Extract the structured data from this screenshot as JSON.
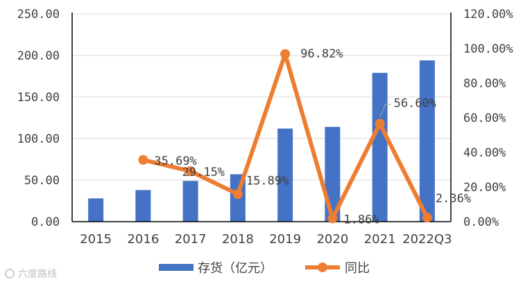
{
  "chart_data": {
    "type": "bar+line",
    "categories": [
      "2015",
      "2016",
      "2017",
      "2018",
      "2019",
      "2020",
      "2021",
      "2022Q3"
    ],
    "series": [
      {
        "name": "存货（亿元）",
        "type": "bar",
        "axis": "left",
        "color": "#4472c4",
        "values": [
          28,
          38,
          49,
          57,
          112,
          114,
          179,
          194
        ]
      },
      {
        "name": "同比",
        "type": "line",
        "axis": "right",
        "color": "#ed7d31",
        "values": [
          null,
          35.69,
          29.15,
          15.89,
          96.82,
          1.86,
          56.6,
          2.36
        ],
        "labels": [
          null,
          "35.69%",
          "29.15%",
          "15.89%",
          "96.82%",
          "1.86%",
          "56.60%",
          "2.36%"
        ]
      }
    ],
    "y_left": {
      "range": [
        0,
        250
      ],
      "ticks": [
        "0.00",
        "50.00",
        "100.00",
        "150.00",
        "200.00",
        "250.00"
      ]
    },
    "y_right": {
      "range": [
        0,
        120
      ],
      "ticks": [
        "0.00%",
        "20.00%",
        "40.00%",
        "60.00%",
        "80.00%",
        "100.00%",
        "120.00%"
      ]
    },
    "grid": "horizontal",
    "legend": "bottom-center"
  },
  "watermark": "六度路线"
}
